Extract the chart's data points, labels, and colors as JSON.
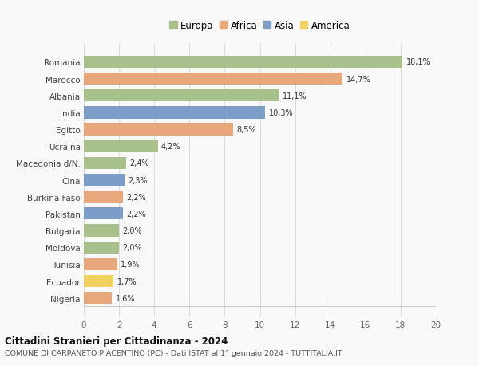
{
  "countries": [
    "Romania",
    "Marocco",
    "Albania",
    "India",
    "Egitto",
    "Ucraina",
    "Macedonia d/N.",
    "Cina",
    "Burkina Faso",
    "Pakistan",
    "Bulgaria",
    "Moldova",
    "Tunisia",
    "Ecuador",
    "Nigeria"
  ],
  "values": [
    18.1,
    14.7,
    11.1,
    10.3,
    8.5,
    4.2,
    2.4,
    2.3,
    2.2,
    2.2,
    2.0,
    2.0,
    1.9,
    1.7,
    1.6
  ],
  "labels": [
    "18,1%",
    "14,7%",
    "11,1%",
    "10,3%",
    "8,5%",
    "4,2%",
    "2,4%",
    "2,3%",
    "2,2%",
    "2,2%",
    "2,0%",
    "2,0%",
    "1,9%",
    "1,7%",
    "1,6%"
  ],
  "continents": [
    "Europa",
    "Africa",
    "Europa",
    "Asia",
    "Africa",
    "Europa",
    "Europa",
    "Asia",
    "Africa",
    "Asia",
    "Europa",
    "Europa",
    "Africa",
    "America",
    "Africa"
  ],
  "colors": {
    "Europa": "#a8c08a",
    "Africa": "#e8a87c",
    "Asia": "#7b9dc7",
    "America": "#f0d060"
  },
  "legend_order": [
    "Europa",
    "Africa",
    "Asia",
    "America"
  ],
  "xlim": [
    0,
    20
  ],
  "xticks": [
    0,
    2,
    4,
    6,
    8,
    10,
    12,
    14,
    16,
    18,
    20
  ],
  "title": "Cittadini Stranieri per Cittadinanza - 2024",
  "subtitle": "COMUNE DI CARPANETO PIACENTINO (PC) - Dati ISTAT al 1° gennaio 2024 - TUTTITALIA.IT",
  "background_color": "#f9f9f9",
  "grid_color": "#dddddd",
  "bar_height": 0.72,
  "label_fontsize": 7.0,
  "ytick_fontsize": 7.5,
  "xtick_fontsize": 7.5,
  "legend_fontsize": 8.5,
  "title_fontsize": 8.5,
  "subtitle_fontsize": 6.8
}
